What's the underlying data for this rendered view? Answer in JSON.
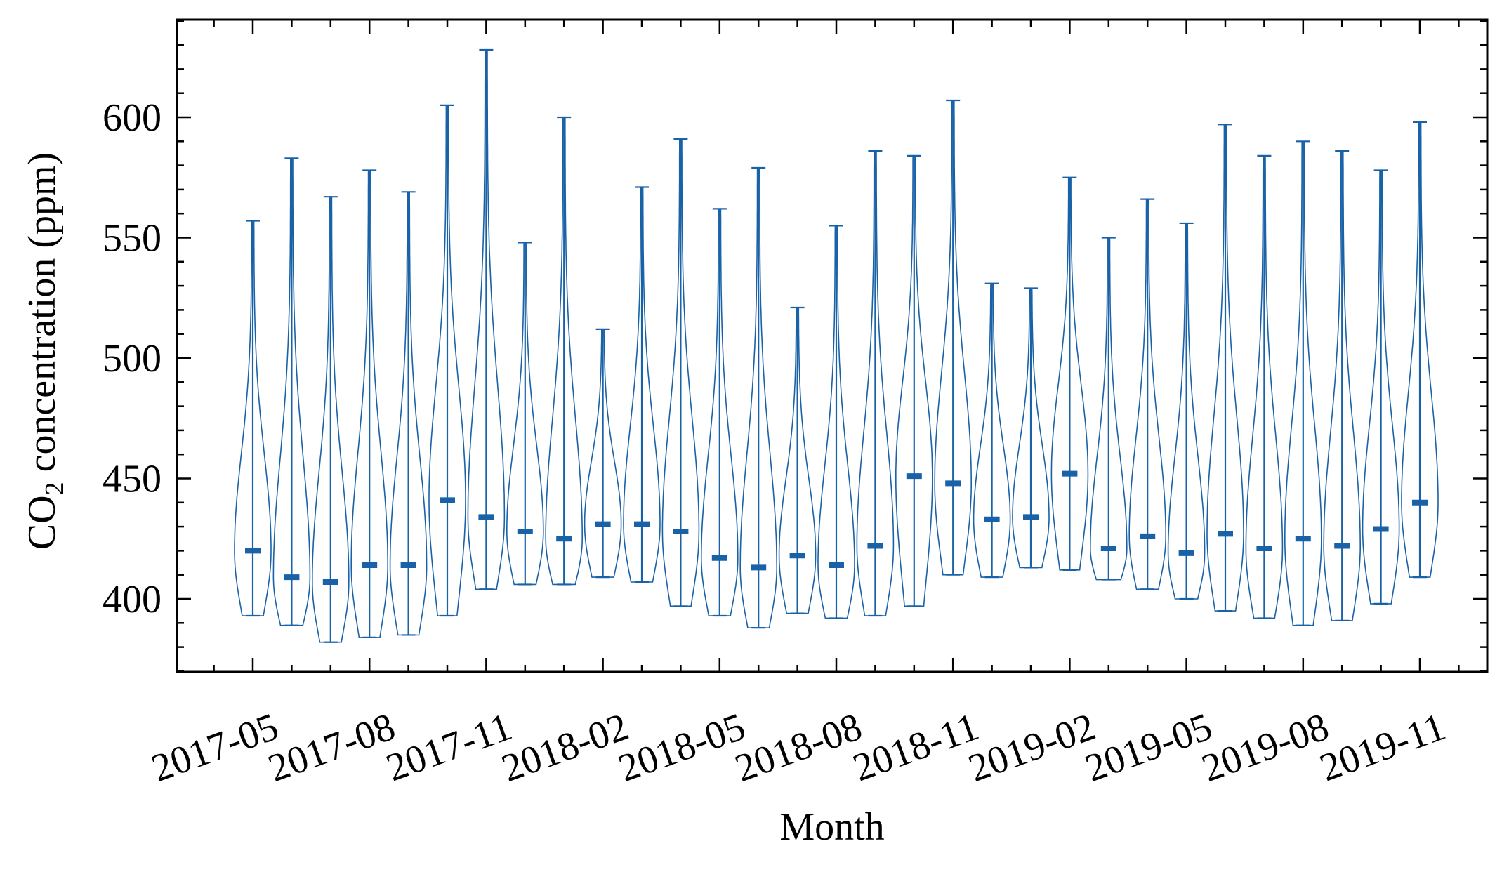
{
  "chart_data": {
    "type": "violin",
    "title": "",
    "xlabel": "Month",
    "ylabel_main": "CO",
    "ylabel_sub": "2",
    "ylabel_rest": " concentration (ppm)",
    "ylim": [
      370,
      640
    ],
    "yticks": [
      400,
      450,
      500,
      550,
      600
    ],
    "y_minor_step": 10,
    "xtick_labels": [
      "2017-05",
      "2017-08",
      "2017-11",
      "2018-02",
      "2018-05",
      "2018-08",
      "2018-11",
      "2019-02",
      "2019-05",
      "2019-08",
      "2019-11"
    ],
    "months": [
      "2017-05",
      "2017-06",
      "2017-07",
      "2017-08",
      "2017-09",
      "2017-10",
      "2017-11",
      "2017-12",
      "2018-01",
      "2018-02",
      "2018-03",
      "2018-04",
      "2018-05",
      "2018-06",
      "2018-07",
      "2018-08",
      "2018-09",
      "2018-10",
      "2018-11",
      "2018-12",
      "2019-01",
      "2019-02",
      "2019-03",
      "2019-04",
      "2019-05",
      "2019-06",
      "2019-07",
      "2019-08",
      "2019-09",
      "2019-10",
      "2019-11"
    ],
    "min": [
      393,
      389,
      382,
      384,
      385,
      393,
      404,
      406,
      406,
      409,
      407,
      397,
      393,
      388,
      394,
      392,
      393,
      397,
      410,
      409,
      413,
      412,
      408,
      404,
      400,
      395,
      392,
      389,
      391,
      398,
      409
    ],
    "max": [
      557,
      583,
      567,
      578,
      569,
      605,
      628,
      548,
      600,
      512,
      571,
      591,
      562,
      579,
      521,
      555,
      586,
      584,
      607,
      531,
      529,
      575,
      550,
      566,
      556,
      597,
      584,
      590,
      586,
      578,
      598
    ],
    "median": [
      420,
      409,
      407,
      414,
      414,
      441,
      434,
      428,
      425,
      431,
      431,
      428,
      417,
      413,
      418,
      414,
      422,
      451,
      448,
      433,
      434,
      452,
      421,
      426,
      419,
      427,
      421,
      425,
      422,
      429,
      440
    ],
    "color": "#1a62a8"
  }
}
